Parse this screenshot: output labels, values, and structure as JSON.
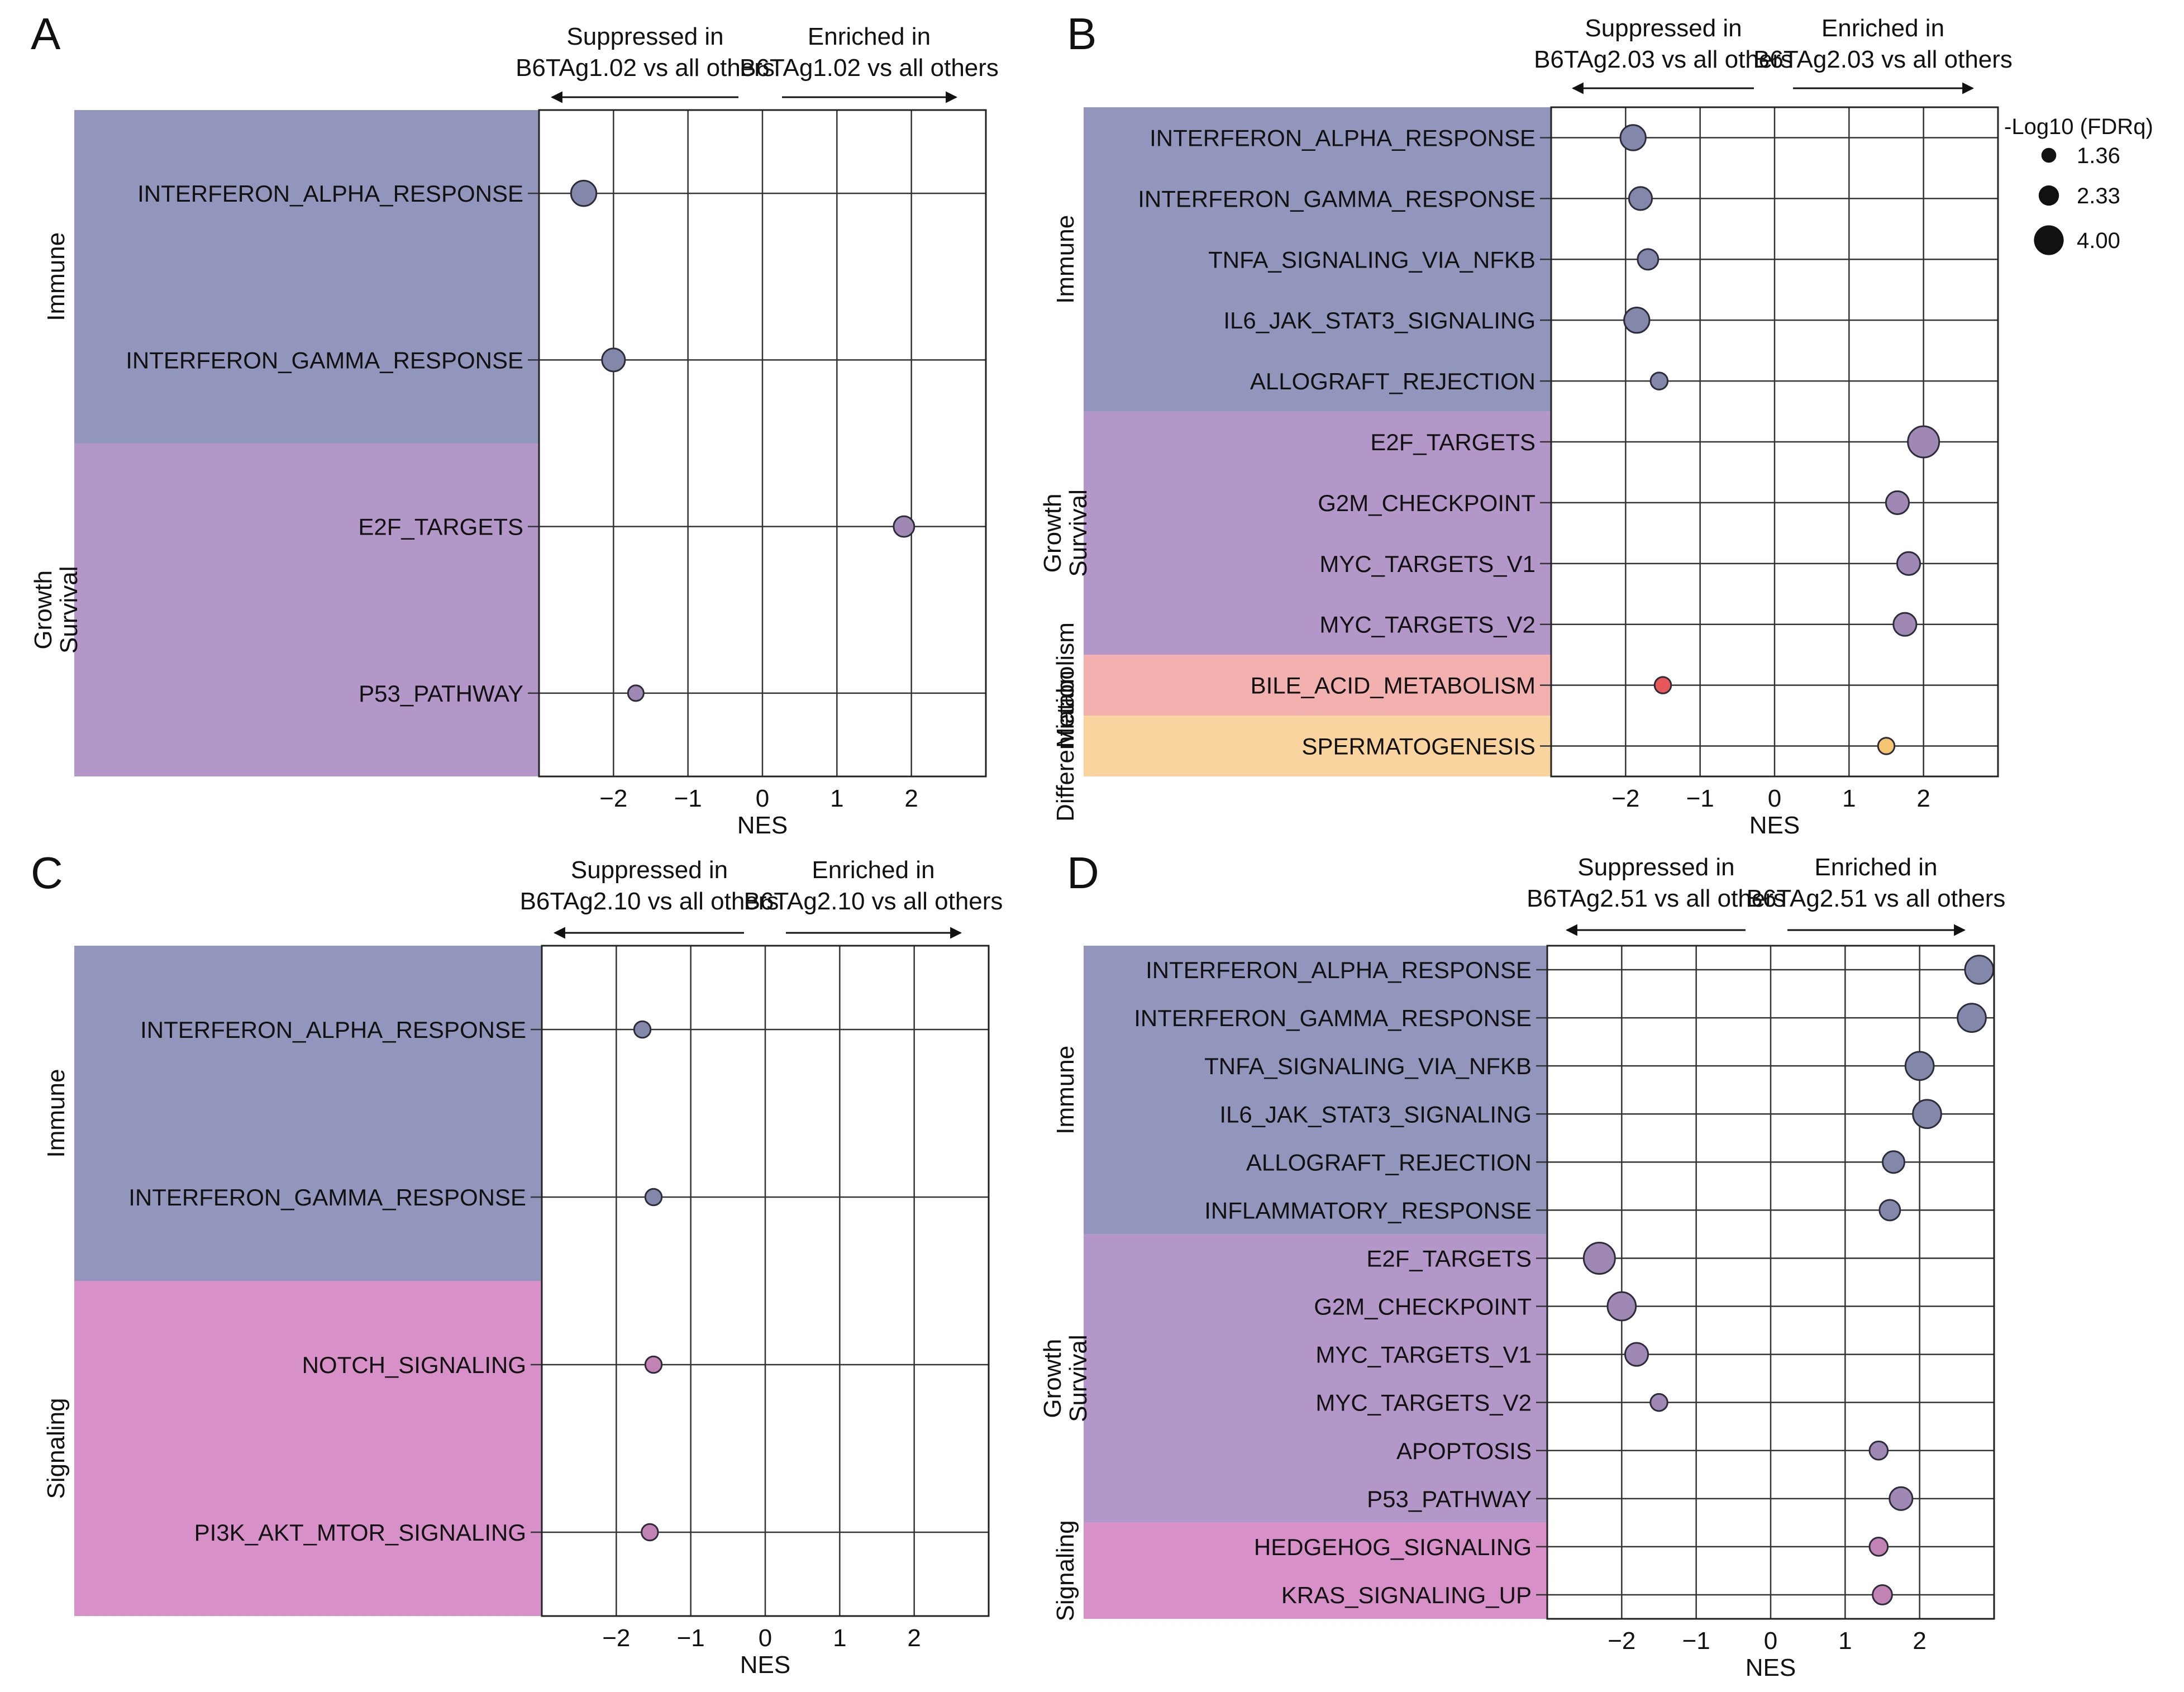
{
  "chart_data": [
    {
      "panel": "A",
      "type": "scatter",
      "xlabel": "NES",
      "xticks": [
        "−2",
        "−1",
        "0",
        "1",
        "2"
      ],
      "xlim": [
        -3,
        3
      ],
      "left_arrow_label": [
        "Suppressed in",
        "B6TAg1.02 vs all others"
      ],
      "right_arrow_label": [
        "Enriched in",
        "B6TAg1.02 vs all others"
      ],
      "groups": [
        {
          "name": "Immune",
          "color": "#9296BD",
          "points": [
            {
              "label": "INTERFERON_ALPHA_RESPONSE",
              "nes": -2.4,
              "size": 3.0
            },
            {
              "label": "INTERFERON_GAMMA_RESPONSE",
              "nes": -2.0,
              "size": 2.6
            }
          ]
        },
        {
          "name": "Growth Survival",
          "color": "#B297C8",
          "points": [
            {
              "label": "E2F_TARGETS",
              "nes": 1.9,
              "size": 2.2
            },
            {
              "label": "P53_PATHWAY",
              "nes": -1.7,
              "size": 1.36
            }
          ]
        }
      ]
    },
    {
      "panel": "B",
      "type": "scatter",
      "xlabel": "NES",
      "xticks": [
        "−2",
        "−1",
        "0",
        "1",
        "2"
      ],
      "xlim": [
        -3,
        3
      ],
      "left_arrow_label": [
        "Suppressed in",
        "B6TAg2.03 vs all others"
      ],
      "right_arrow_label": [
        "Enriched in",
        "B6TAg2.03 vs all others"
      ],
      "legend": {
        "title": "-Log10 (FDRq)",
        "entries": [
          "1.36",
          "2.33",
          "4.00"
        ],
        "values": [
          1.36,
          2.33,
          4.0
        ]
      },
      "groups": [
        {
          "name": "Immune",
          "color": "#9296BD",
          "points": [
            {
              "label": "INTERFERON_ALPHA_RESPONSE",
              "nes": -1.9,
              "size": 3.0
            },
            {
              "label": "INTERFERON_GAMMA_RESPONSE",
              "nes": -1.8,
              "size": 2.6
            },
            {
              "label": "TNFA_SIGNALING_VIA_NFKB",
              "nes": -1.7,
              "size": 2.2
            },
            {
              "label": "IL6_JAK_STAT3_SIGNALING",
              "nes": -1.85,
              "size": 3.0
            },
            {
              "label": "ALLOGRAFT_REJECTION",
              "nes": -1.55,
              "size": 1.6
            }
          ]
        },
        {
          "name": "Growth Survival",
          "color": "#B297C8",
          "points": [
            {
              "label": "E2F_TARGETS",
              "nes": 2.0,
              "size": 4.0
            },
            {
              "label": "G2M_CHECKPOINT",
              "nes": 1.65,
              "size": 2.6
            },
            {
              "label": "MYC_TARGETS_V1",
              "nes": 1.8,
              "size": 2.6
            },
            {
              "label": "MYC_TARGETS_V2",
              "nes": 1.75,
              "size": 2.6
            }
          ]
        },
        {
          "name": "Metabolism",
          "color": "#F2B0AF",
          "dot_color": "#E8575A",
          "points": [
            {
              "label": "BILE_ACID_METABOLISM",
              "nes": -1.5,
              "size": 1.5
            }
          ]
        },
        {
          "name": "Differentiation",
          "color": "#F9D49E",
          "dot_color": "#F7C472",
          "points": [
            {
              "label": "SPERMATOGENESIS",
              "nes": 1.5,
              "size": 1.5
            }
          ]
        }
      ]
    },
    {
      "panel": "C",
      "type": "scatter",
      "xlabel": "NES",
      "xticks": [
        "−2",
        "−1",
        "0",
        "1",
        "2"
      ],
      "xlim": [
        -3,
        3
      ],
      "left_arrow_label": [
        "Suppressed in",
        "B6TAg2.10 vs all others"
      ],
      "right_arrow_label": [
        "Enriched in",
        "B6TAg2.10 vs all others"
      ],
      "groups": [
        {
          "name": "Immune",
          "color": "#9296BD",
          "points": [
            {
              "label": "INTERFERON_ALPHA_RESPONSE",
              "nes": -1.65,
              "size": 1.5
            },
            {
              "label": "INTERFERON_GAMMA_RESPONSE",
              "nes": -1.5,
              "size": 1.5
            }
          ]
        },
        {
          "name": "Signaling",
          "color": "#D791C8",
          "points": [
            {
              "label": "NOTCH_SIGNALING",
              "nes": -1.5,
              "size": 1.5
            },
            {
              "label": "PI3K_AKT_MTOR_SIGNALING",
              "nes": -1.55,
              "size": 1.5
            }
          ]
        }
      ]
    },
    {
      "panel": "D",
      "type": "scatter",
      "xlabel": "NES",
      "xticks": [
        "−2",
        "−1",
        "0",
        "1",
        "2"
      ],
      "xlim": [
        -3,
        3
      ],
      "left_arrow_label": [
        "Suppressed in",
        "B6TAg2.51 vs all others"
      ],
      "right_arrow_label": [
        "Enriched in",
        "B6TAg2.51 vs all others"
      ],
      "groups": [
        {
          "name": "Immune",
          "color": "#9296BD",
          "points": [
            {
              "label": "INTERFERON_ALPHA_RESPONSE",
              "nes": 2.8,
              "size": 3.5
            },
            {
              "label": "INTERFERON_GAMMA_RESPONSE",
              "nes": 2.7,
              "size": 3.5
            },
            {
              "label": "TNFA_SIGNALING_VIA_NFKB",
              "nes": 2.0,
              "size": 3.5
            },
            {
              "label": "IL6_JAK_STAT3_SIGNALING",
              "nes": 2.1,
              "size": 3.5
            },
            {
              "label": "ALLOGRAFT_REJECTION",
              "nes": 1.65,
              "size": 2.4
            },
            {
              "label": "INFLAMMATORY_RESPONSE",
              "nes": 1.6,
              "size": 2.2
            }
          ]
        },
        {
          "name": "Growth Survival",
          "color": "#B297C8",
          "points": [
            {
              "label": "E2F_TARGETS",
              "nes": -2.3,
              "size": 4.0
            },
            {
              "label": "G2M_CHECKPOINT",
              "nes": -2.0,
              "size": 3.5
            },
            {
              "label": "MYC_TARGETS_V1",
              "nes": -1.8,
              "size": 2.6
            },
            {
              "label": "MYC_TARGETS_V2",
              "nes": -1.5,
              "size": 1.6
            },
            {
              "label": "APOPTOSIS",
              "nes": 1.45,
              "size": 1.8
            },
            {
              "label": "P53_PATHWAY",
              "nes": 1.75,
              "size": 2.6
            }
          ]
        },
        {
          "name": "Signaling",
          "color": "#D791C8",
          "points": [
            {
              "label": "HEDGEHOG_SIGNALING",
              "nes": 1.45,
              "size": 1.8
            },
            {
              "label": "KRAS_SIGNALING_UP",
              "nes": 1.5,
              "size": 2.0
            }
          ]
        }
      ]
    }
  ]
}
